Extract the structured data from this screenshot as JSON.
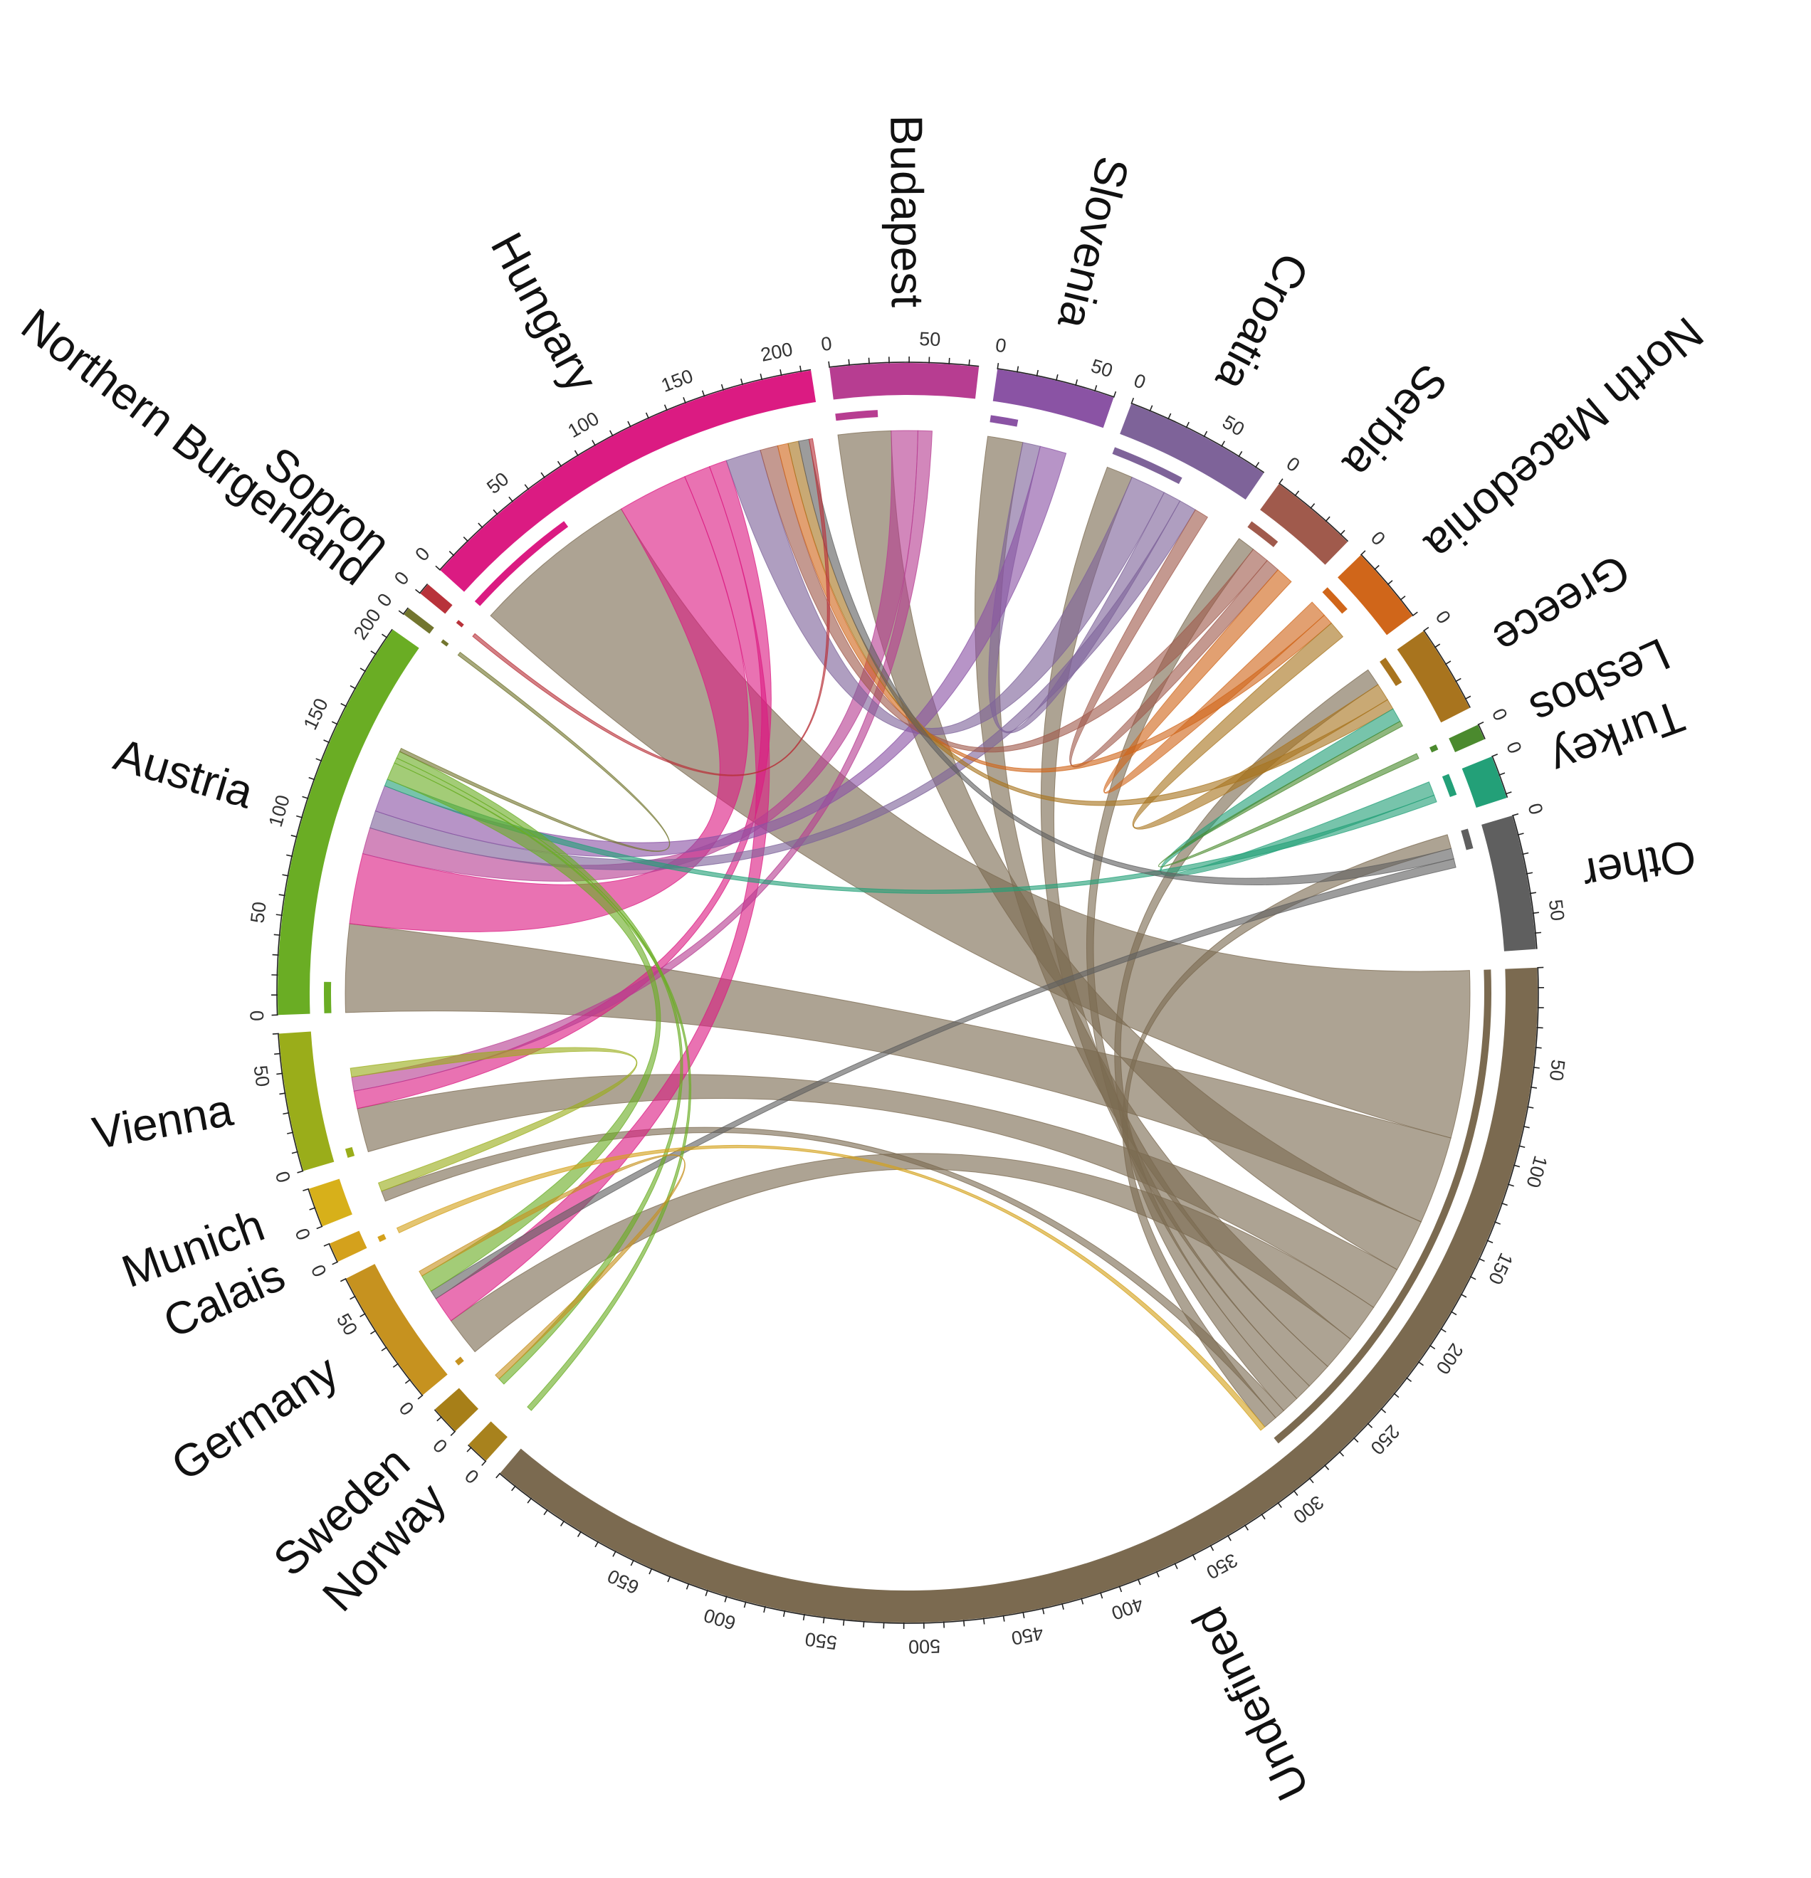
{
  "sectors": [
    {
      "id": "norway",
      "label": "Norway",
      "total": 12,
      "color": "#a8821d",
      "ticks": [
        0
      ],
      "minor": 10
    },
    {
      "id": "sweden",
      "label": "Sweden",
      "total": 15,
      "color": "#a77f18",
      "ticks": [
        0
      ],
      "minor": 10
    },
    {
      "id": "germany",
      "label": "Germany",
      "total": 70,
      "color": "#c6921f",
      "ticks": [
        50,
        0
      ],
      "minor": 10
    },
    {
      "id": "calais",
      "label": "Calais",
      "total": 10,
      "color": "#d4a11c",
      "ticks": [
        0
      ],
      "minor": 10
    },
    {
      "id": "munich",
      "label": "Munich",
      "total": 20,
      "color": "#d7b01a",
      "ticks": [
        0
      ],
      "minor": 10
    },
    {
      "id": "vienna",
      "label": "Vienna",
      "total": 70,
      "color": "#9aad1a",
      "ticks": [
        50,
        0
      ],
      "minor": 10
    },
    {
      "id": "austria",
      "label": "Austria",
      "total": 205,
      "color": "#6aad24",
      "ticks": [
        200,
        150,
        100,
        50,
        0
      ],
      "minor": 10
    },
    {
      "id": "northern-burgenland",
      "label": "Northern Burgenland",
      "total": 4,
      "color": "#72752e",
      "ticks": [
        0
      ],
      "minor": 10
    },
    {
      "id": "sopron",
      "label": "Sopron",
      "total": 6,
      "color": "#b8323a",
      "ticks": [
        0
      ],
      "minor": 10
    },
    {
      "id": "hungary",
      "label": "Hungary",
      "total": 215,
      "color": "#db1b82",
      "ticks": [
        0,
        50,
        100,
        150,
        200
      ],
      "minor": 10
    },
    {
      "id": "budapest",
      "label": "Budapest",
      "total": 75,
      "color": "#b73d91",
      "ticks": [
        0,
        50
      ],
      "minor": 10
    },
    {
      "id": "slovenia",
      "label": "Slovenia",
      "total": 60,
      "color": "#8a53a4",
      "ticks": [
        0,
        50
      ],
      "minor": 10
    },
    {
      "id": "croatia",
      "label": "Croatia",
      "total": 75,
      "color": "#7e6399",
      "ticks": [
        0,
        50
      ],
      "minor": 10
    },
    {
      "id": "serbia",
      "label": "Serbia",
      "total": 45,
      "color": "#a05a4c",
      "ticks": [
        0
      ],
      "minor": 10
    },
    {
      "id": "north-macedonia",
      "label": "North Macedonia",
      "total": 40,
      "color": "#d0661a",
      "ticks": [
        0
      ],
      "minor": 10
    },
    {
      "id": "greece",
      "label": "Greece",
      "total": 45,
      "color": "#a8741e",
      "ticks": [
        0
      ],
      "minor": 10
    },
    {
      "id": "lesbos",
      "label": "Lesbos",
      "total": 8,
      "color": "#4b8a2e",
      "ticks": [
        0
      ],
      "minor": 10
    },
    {
      "id": "turkey",
      "label": "Turkey",
      "total": 22,
      "color": "#23a078",
      "ticks": [
        0
      ],
      "minor": 10
    },
    {
      "id": "other",
      "label": "Other",
      "total": 68,
      "color": "#5f5f5f",
      "ticks": [
        0,
        50
      ],
      "minor": 10
    },
    {
      "id": "undefined",
      "label": "Undefined",
      "total": 730,
      "color": "#7b6a50",
      "ticks": [
        50,
        100,
        150,
        200,
        250,
        300,
        350,
        400,
        450,
        500,
        550,
        600,
        650
      ],
      "minor": 10
    }
  ],
  "flows": [
    {
      "from": "undefined",
      "to": "hungary",
      "value": 95
    },
    {
      "from": "undefined",
      "to": "austria",
      "value": 50
    },
    {
      "from": "undefined",
      "to": "budapest",
      "value": 30
    },
    {
      "from": "undefined",
      "to": "vienna",
      "value": 25
    },
    {
      "from": "undefined",
      "to": "germany",
      "value": 22
    },
    {
      "from": "undefined",
      "to": "slovenia",
      "value": 20
    },
    {
      "from": "undefined",
      "to": "croatia",
      "value": 15
    },
    {
      "from": "undefined",
      "to": "serbia",
      "value": 10
    },
    {
      "from": "undefined",
      "to": "greece",
      "value": 10
    },
    {
      "from": "undefined",
      "to": "munich",
      "value": 6
    },
    {
      "from": "undefined",
      "to": "other",
      "value": 8
    },
    {
      "from": "hungary",
      "to": "austria",
      "value": 40
    },
    {
      "from": "hungary",
      "to": "germany",
      "value": 15
    },
    {
      "from": "hungary",
      "to": "vienna",
      "value": 10
    },
    {
      "from": "budapest",
      "to": "austria",
      "value": 15
    },
    {
      "from": "budapest",
      "to": "vienna",
      "value": 8
    },
    {
      "from": "croatia",
      "to": "hungary",
      "value": 20
    },
    {
      "from": "croatia",
      "to": "slovenia",
      "value": 10
    },
    {
      "from": "croatia",
      "to": "austria",
      "value": 10
    },
    {
      "from": "slovenia",
      "to": "austria",
      "value": 15
    },
    {
      "from": "serbia",
      "to": "hungary",
      "value": 10
    },
    {
      "from": "serbia",
      "to": "croatia",
      "value": 8
    },
    {
      "from": "north-macedonia",
      "to": "serbia",
      "value": 10
    },
    {
      "from": "north-macedonia",
      "to": "hungary",
      "value": 6
    },
    {
      "from": "greece",
      "to": "north-macedonia",
      "value": 10
    },
    {
      "from": "greece",
      "to": "hungary",
      "value": 6
    },
    {
      "from": "turkey",
      "to": "greece",
      "value": 8
    },
    {
      "from": "turkey",
      "to": "austria",
      "value": 4
    },
    {
      "from": "lesbos",
      "to": "greece",
      "value": 3
    },
    {
      "from": "other",
      "to": "hungary",
      "value": 6
    },
    {
      "from": "other",
      "to": "germany",
      "value": 5
    },
    {
      "from": "austria",
      "to": "germany",
      "value": 10
    },
    {
      "from": "austria",
      "to": "norway",
      "value": 3
    },
    {
      "from": "austria",
      "to": "sweden",
      "value": 4
    },
    {
      "from": "vienna",
      "to": "munich",
      "value": 5
    },
    {
      "from": "germany",
      "to": "sweden",
      "value": 3
    },
    {
      "from": "calais",
      "to": "undefined",
      "value": 3
    },
    {
      "from": "sopron",
      "to": "hungary",
      "value": 2
    },
    {
      "from": "northern-burgenland",
      "to": "austria",
      "value": 2
    }
  ]
}
